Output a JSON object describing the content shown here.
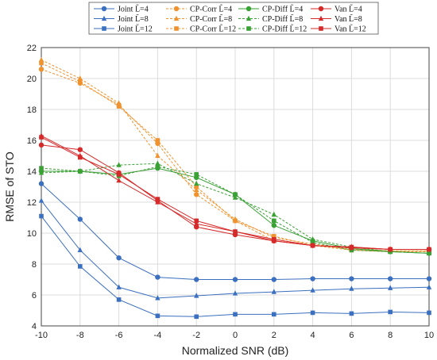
{
  "chart_data": {
    "type": "line",
    "xlabel": "Normalized SNR (dB)",
    "ylabel": "RMSE of STO",
    "xlim": [
      -10,
      10
    ],
    "ylim": [
      4,
      22
    ],
    "x_ticks": [
      "-10",
      "-8",
      "-6",
      "-4",
      "-2",
      "0",
      "2",
      "4",
      "6",
      "8",
      "10"
    ],
    "y_ticks": [
      "4",
      "6",
      "8",
      "10",
      "12",
      "14",
      "16",
      "18",
      "20",
      "22"
    ],
    "grid": true,
    "legend_position": "top-center",
    "x": [
      -10,
      -8,
      -6,
      -4,
      -2,
      0,
      2,
      4,
      6,
      8,
      10
    ],
    "series": [
      {
        "name": "Joint L̃=4",
        "color": "#3b6fbf",
        "marker": "circle",
        "dash": "solid",
        "values": [
          13.2,
          10.9,
          8.4,
          7.15,
          7.0,
          7.0,
          7.0,
          7.05,
          7.05,
          7.05,
          7.05
        ]
      },
      {
        "name": "Joint L̃=8",
        "color": "#3b6fbf",
        "marker": "triangle",
        "dash": "solid",
        "values": [
          12.1,
          8.9,
          6.5,
          5.8,
          5.95,
          6.1,
          6.2,
          6.3,
          6.4,
          6.45,
          6.5
        ]
      },
      {
        "name": "Joint L̃=12",
        "color": "#3b6fbf",
        "marker": "square",
        "dash": "solid",
        "values": [
          11.1,
          7.85,
          5.7,
          4.65,
          4.6,
          4.75,
          4.75,
          4.85,
          4.8,
          4.9,
          4.85
        ]
      },
      {
        "name": "CP-Corr L̃=4",
        "color": "#f0922e",
        "marker": "circle",
        "dash": "dashed",
        "values": [
          20.6,
          19.7,
          18.3,
          15.8,
          12.5,
          10.8,
          9.5,
          9.2,
          8.95,
          8.85,
          8.85
        ]
      },
      {
        "name": "CP-Corr L̃=8",
        "color": "#f0922e",
        "marker": "triangle",
        "dash": "dashed",
        "values": [
          21.2,
          20.0,
          18.4,
          15.0,
          12.8,
          10.9,
          9.7,
          9.3,
          9.0,
          8.85,
          8.85
        ]
      },
      {
        "name": "CP-Corr L̃=12",
        "color": "#f0922e",
        "marker": "square",
        "dash": "dashed",
        "values": [
          21.0,
          19.8,
          18.2,
          16.0,
          13.0,
          10.8,
          9.8,
          9.2,
          8.9,
          8.8,
          8.8
        ]
      },
      {
        "name": "CP-Diff L̃=4",
        "color": "#3aa135",
        "marker": "circle",
        "dash": "solid",
        "values": [
          14.0,
          14.0,
          13.8,
          14.2,
          13.6,
          12.5,
          10.5,
          9.5,
          9.0,
          8.8,
          8.7
        ]
      },
      {
        "name": "CP-Diff L̃=8",
        "color": "#3aa135",
        "marker": "triangle",
        "dash": "dashed",
        "values": [
          13.9,
          14.0,
          14.4,
          14.5,
          13.2,
          12.3,
          11.2,
          9.6,
          9.1,
          8.8,
          8.7
        ]
      },
      {
        "name": "CP-Diff L̃=12",
        "color": "#3aa135",
        "marker": "square",
        "dash": "dashed",
        "values": [
          14.2,
          14.0,
          13.7,
          14.3,
          13.8,
          12.5,
          10.8,
          9.4,
          8.9,
          8.8,
          8.7
        ]
      },
      {
        "name": "Van L̃=4",
        "color": "#d62a2a",
        "marker": "circle",
        "dash": "solid",
        "values": [
          15.7,
          15.4,
          13.9,
          12.1,
          10.4,
          9.9,
          9.5,
          9.2,
          9.05,
          8.95,
          8.95
        ]
      },
      {
        "name": "Van L̃=8",
        "color": "#d62a2a",
        "marker": "triangle",
        "dash": "solid",
        "values": [
          16.3,
          15.0,
          13.4,
          12.0,
          10.6,
          10.1,
          9.5,
          9.2,
          9.1,
          8.95,
          8.95
        ]
      },
      {
        "name": "Van L̃=12",
        "color": "#d62a2a",
        "marker": "square",
        "dash": "solid",
        "values": [
          16.2,
          14.9,
          13.8,
          12.2,
          10.8,
          10.1,
          9.6,
          9.2,
          9.1,
          8.95,
          8.95
        ]
      }
    ]
  }
}
